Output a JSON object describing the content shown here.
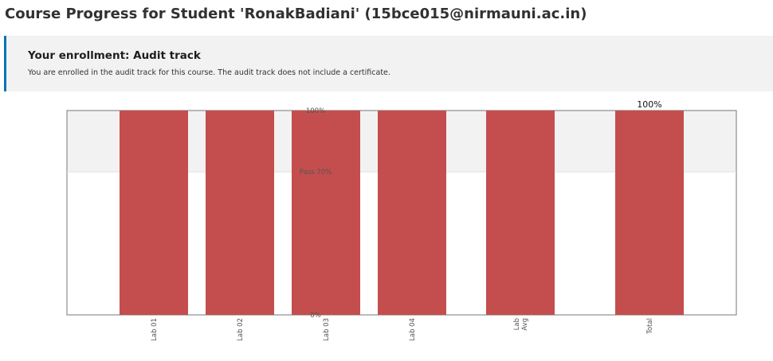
{
  "page": {
    "title": "Course Progress for Student 'RonakBadiani' (15bce015@nirmauni.ac.in)"
  },
  "enrollment": {
    "title": "Your enrollment: Audit track",
    "message": "You are enrolled in the audit track for this course. The audit track does not include a certificate."
  },
  "colors": {
    "bar": "#c44e4e",
    "pass_band": "#f2f2f2",
    "accent": "#0075b4"
  },
  "chart_data": {
    "type": "bar",
    "categories": [
      [
        "Lab 01"
      ],
      [
        "Lab 02"
      ],
      [
        "Lab 03"
      ],
      [
        "Lab 04"
      ],
      [
        "Lab",
        "Avg"
      ],
      [
        "Total"
      ]
    ],
    "values": [
      100,
      100,
      100,
      100,
      100,
      100
    ],
    "ylim": [
      0,
      100
    ],
    "y_ticks": [
      {
        "value": 100,
        "label": "100%"
      },
      {
        "value": 70,
        "label": "Pass 70%"
      },
      {
        "value": 0,
        "label": "0%"
      }
    ],
    "pass_threshold": 70,
    "data_labels": [
      {
        "index": 5,
        "label": "100%"
      }
    ],
    "grid": false,
    "legend": "none"
  }
}
